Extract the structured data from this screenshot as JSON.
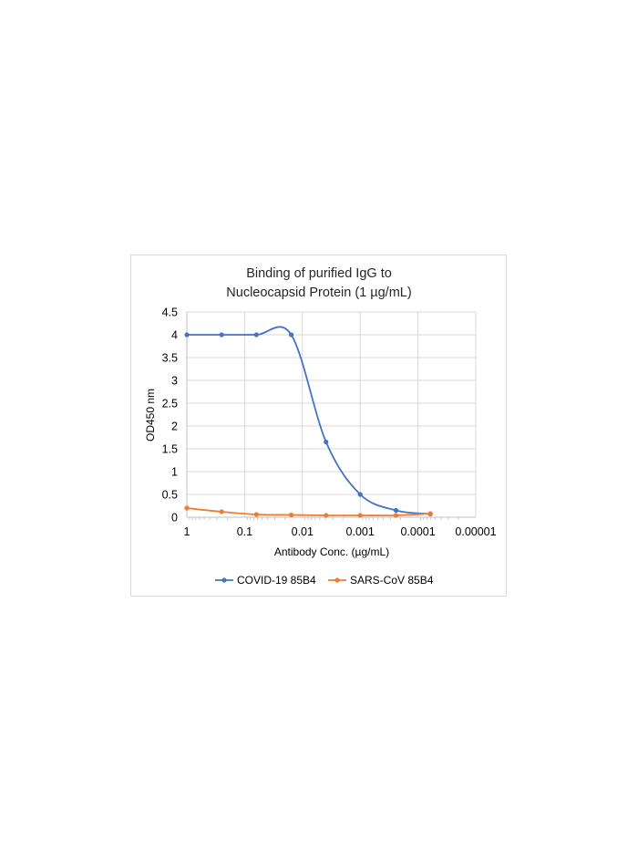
{
  "chart_data": {
    "type": "line",
    "title": [
      "Binding of purified IgG to",
      "Nucleocapsid Protein (1 µg/mL)"
    ],
    "xlabel": "Antibody Conc. (µg/mL)",
    "ylabel": "OD450 nm",
    "x_scale": "log",
    "x_reversed": true,
    "xlim": [
      1,
      1e-05
    ],
    "ylim": [
      0,
      4.5
    ],
    "x_ticks": [
      "1",
      "0.1",
      "0.01",
      "0.001",
      "0.0001",
      "0.00001"
    ],
    "y_ticks": [
      "0",
      "0.5",
      "1",
      "1.5",
      "2",
      "2.5",
      "3",
      "3.5",
      "4",
      "4.5"
    ],
    "grid": true,
    "legend_position": "bottom",
    "series": [
      {
        "name": "COVID-19 85B4",
        "color": "#4472C4",
        "x": [
          1,
          0.25,
          0.0625,
          0.0156,
          0.0039,
          0.001,
          0.00024,
          6.1e-05
        ],
        "y": [
          4.0,
          4.0,
          4.0,
          4.0,
          1.65,
          0.5,
          0.15,
          0.07
        ]
      },
      {
        "name": "SARS-CoV 85B4",
        "color": "#ED7D31",
        "x": [
          1,
          0.25,
          0.0625,
          0.0156,
          0.0039,
          0.001,
          0.00024,
          6.1e-05
        ],
        "y": [
          0.2,
          0.12,
          0.06,
          0.05,
          0.04,
          0.04,
          0.04,
          0.08
        ]
      }
    ]
  }
}
